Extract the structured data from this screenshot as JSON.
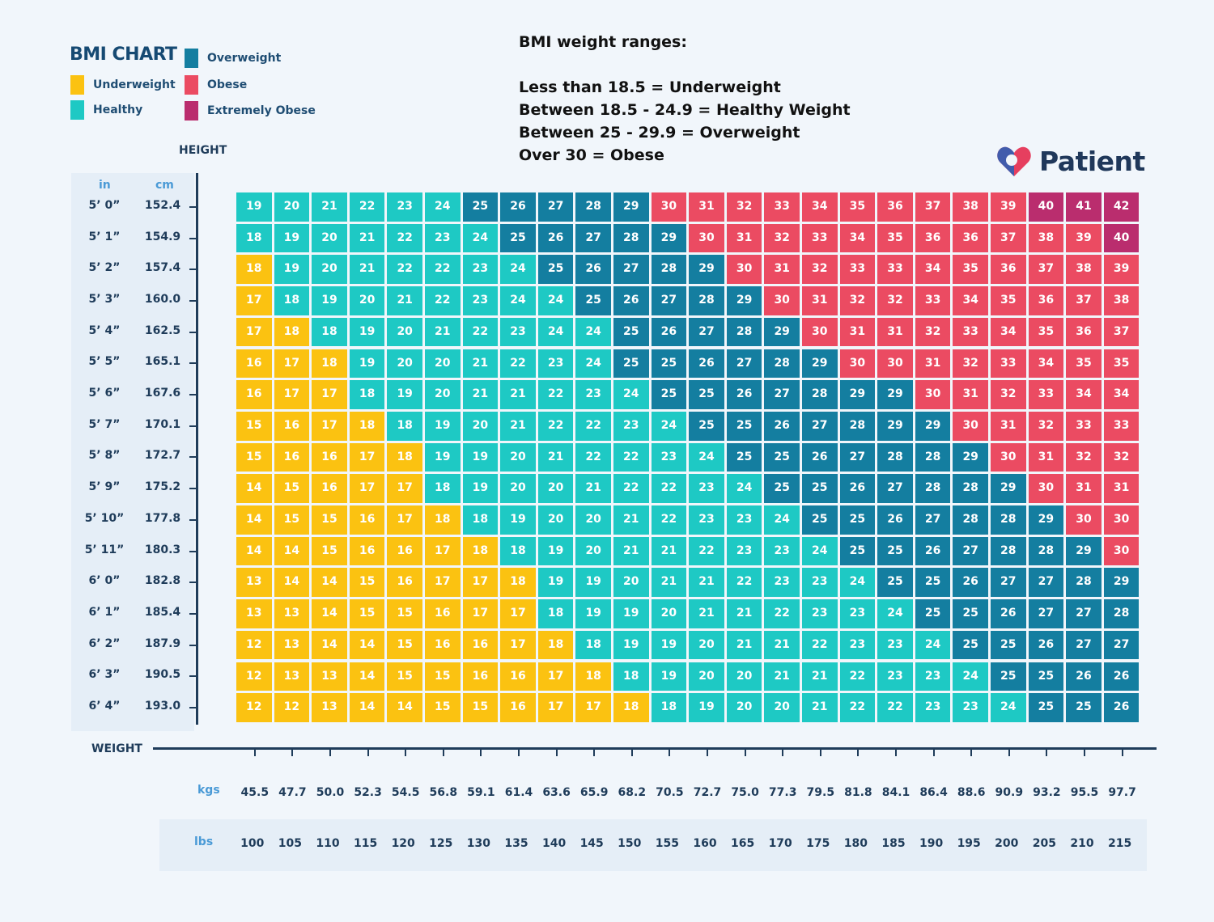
{
  "legend": {
    "title": "BMI CHART",
    "items": [
      {
        "label": "Underweight",
        "color": "#fbc211"
      },
      {
        "label": "Healthy",
        "color": "#1ec9c4"
      },
      {
        "label": "Overweight",
        "color": "#147ea0"
      },
      {
        "label": "Obese",
        "color": "#eb4b62"
      },
      {
        "label": "Extremely Obese",
        "color": "#ba2d6e"
      }
    ]
  },
  "ranges": {
    "heading": "BMI weight ranges:",
    "lines": [
      "Less than 18.5 = Underweight",
      "Between 18.5 - 24.9 = Healthy Weight",
      "Between 25 - 29.9 = Overweight",
      "Over 30 = Obese"
    ]
  },
  "logo": {
    "text": "Patient",
    "colors": [
      "#2f5fb5",
      "#e63f5f"
    ]
  },
  "axes": {
    "height_label": "HEIGHT",
    "weight_label": "WEIGHT",
    "in_label": "in",
    "cm_label": "cm",
    "kgs_label": "kgs",
    "lbs_label": "lbs"
  },
  "chart_data": {
    "type": "heatmap",
    "title": "BMI CHART",
    "xlabel": "WEIGHT",
    "ylabel": "HEIGHT",
    "heights_in": [
      "5’ 0”",
      "5’ 1”",
      "5’ 2”",
      "5’ 3”",
      "5’ 4”",
      "5’ 5”",
      "5’ 6”",
      "5’ 7”",
      "5’ 8”",
      "5’ 9”",
      "5’ 10”",
      "5’ 11”",
      "6’ 0”",
      "6’ 1”",
      "6’ 2”",
      "6’ 3”",
      "6’ 4”"
    ],
    "heights_cm": [
      "152.4",
      "154.9",
      "157.4",
      "160.0",
      "162.5",
      "165.1",
      "167.6",
      "170.1",
      "172.7",
      "175.2",
      "177.8",
      "180.3",
      "182.8",
      "185.4",
      "187.9",
      "190.5",
      "193.0"
    ],
    "weights_kg": [
      "45.5",
      "47.7",
      "50.0",
      "52.3",
      "54.5",
      "56.8",
      "59.1",
      "61.4",
      "63.6",
      "65.9",
      "68.2",
      "70.5",
      "72.7",
      "75.0",
      "77.3",
      "79.5",
      "81.8",
      "84.1",
      "86.4",
      "88.6",
      "90.9",
      "93.2",
      "95.5",
      "97.7"
    ],
    "weights_lbs": [
      "100",
      "105",
      "110",
      "115",
      "120",
      "125",
      "130",
      "135",
      "140",
      "145",
      "150",
      "155",
      "160",
      "165",
      "170",
      "175",
      "180",
      "185",
      "190",
      "195",
      "200",
      "205",
      "210",
      "215"
    ],
    "category_colors": {
      "U": "#fbc211",
      "H": "#1ec9c4",
      "O": "#147ea0",
      "B": "#eb4b62",
      "E": "#ba2d6e"
    },
    "bmi": [
      [
        19,
        20,
        21,
        22,
        23,
        24,
        25,
        26,
        27,
        28,
        29,
        30,
        31,
        32,
        33,
        34,
        35,
        36,
        37,
        38,
        39,
        40,
        41,
        42
      ],
      [
        18,
        19,
        20,
        21,
        22,
        23,
        24,
        25,
        26,
        27,
        28,
        29,
        30,
        31,
        32,
        33,
        34,
        35,
        36,
        36,
        37,
        38,
        39,
        40
      ],
      [
        18,
        19,
        20,
        21,
        22,
        22,
        23,
        24,
        25,
        26,
        27,
        28,
        29,
        30,
        31,
        32,
        33,
        33,
        34,
        35,
        36,
        37,
        38,
        39
      ],
      [
        17,
        18,
        19,
        20,
        21,
        22,
        23,
        24,
        24,
        25,
        26,
        27,
        28,
        29,
        30,
        31,
        32,
        32,
        33,
        34,
        35,
        36,
        37,
        38
      ],
      [
        17,
        18,
        18,
        19,
        20,
        21,
        22,
        23,
        24,
        24,
        25,
        26,
        27,
        28,
        29,
        30,
        31,
        31,
        32,
        33,
        34,
        35,
        36,
        37
      ],
      [
        16,
        17,
        18,
        19,
        20,
        20,
        21,
        22,
        23,
        24,
        25,
        25,
        26,
        27,
        28,
        29,
        30,
        30,
        31,
        32,
        33,
        34,
        35,
        35
      ],
      [
        16,
        17,
        17,
        18,
        19,
        20,
        21,
        21,
        22,
        23,
        24,
        25,
        25,
        26,
        27,
        28,
        29,
        29,
        30,
        31,
        32,
        33,
        34,
        34
      ],
      [
        15,
        16,
        17,
        18,
        18,
        19,
        20,
        21,
        22,
        22,
        23,
        24,
        25,
        25,
        26,
        27,
        28,
        29,
        29,
        30,
        31,
        32,
        33,
        33
      ],
      [
        15,
        16,
        16,
        17,
        18,
        19,
        19,
        20,
        21,
        22,
        22,
        23,
        24,
        25,
        25,
        26,
        27,
        28,
        28,
        29,
        30,
        31,
        32,
        32
      ],
      [
        14,
        15,
        16,
        17,
        17,
        18,
        19,
        20,
        20,
        21,
        22,
        22,
        23,
        24,
        25,
        25,
        26,
        27,
        28,
        28,
        29,
        30,
        31,
        31
      ],
      [
        14,
        15,
        15,
        16,
        17,
        18,
        18,
        19,
        20,
        20,
        21,
        22,
        23,
        23,
        24,
        25,
        25,
        26,
        27,
        28,
        28,
        29,
        30,
        30
      ],
      [
        14,
        14,
        15,
        16,
        16,
        17,
        18,
        18,
        19,
        20,
        21,
        21,
        22,
        23,
        23,
        24,
        25,
        25,
        26,
        27,
        28,
        28,
        29,
        30
      ],
      [
        13,
        14,
        14,
        15,
        16,
        17,
        17,
        18,
        19,
        19,
        20,
        21,
        21,
        22,
        23,
        23,
        24,
        25,
        25,
        26,
        27,
        27,
        28,
        29
      ],
      [
        13,
        13,
        14,
        15,
        15,
        16,
        17,
        17,
        18,
        19,
        19,
        20,
        21,
        21,
        22,
        23,
        23,
        24,
        25,
        25,
        26,
        27,
        27,
        28
      ],
      [
        12,
        13,
        14,
        14,
        15,
        16,
        16,
        17,
        18,
        18,
        19,
        19,
        20,
        21,
        21,
        22,
        23,
        23,
        24,
        25,
        25,
        26,
        27,
        27
      ],
      [
        12,
        13,
        13,
        14,
        15,
        15,
        16,
        16,
        17,
        18,
        18,
        19,
        20,
        20,
        21,
        21,
        22,
        23,
        23,
        24,
        25,
        25,
        26,
        26
      ],
      [
        12,
        12,
        13,
        14,
        14,
        15,
        15,
        16,
        17,
        17,
        18,
        18,
        19,
        20,
        20,
        21,
        22,
        22,
        23,
        23,
        24,
        25,
        25,
        26
      ]
    ],
    "category": [
      "HHHHHHOOOOOBBBBBBBBBBEEE",
      "HHHHHHHOOOOOBBBBBBBBBBBE",
      "UHHHHHHHOOOOOBBBBBBBBBBB",
      "UHHHHHHHHOOOOOBBBBBBBBBB",
      "UUHHHHHHHHOOOOOBBBBBBBBB",
      "UUUHHHHHHHOOOOOOBBBBBBBB",
      "UUUHHHHHHHHOOOOOOOBBBBBB",
      "UUUUHHHHHHHHOOOOOOOBBBBB",
      "UUUUUHHHHHHHHOOOOOOOBBBB",
      "UUUUUHHHHHHHHHOOOOOOOBBB",
      "UUUUUUHHHHHHHHHOOOOOOOBB",
      "UUUUUUUHHHHHHHHHOOOOOOOB",
      "UUUUUUUUHHHHHHHHHOOOOOOO",
      "UUUUUUUUHHHHHHHHHHOOOOOO",
      "UUUUUUUUUHHHHHHHHHHOOOOO",
      "UUUUUUUUUUHHHHHHHHHHOOOO",
      "UUUUUUUUUUUHHHHHHHHHHOOO"
    ]
  }
}
